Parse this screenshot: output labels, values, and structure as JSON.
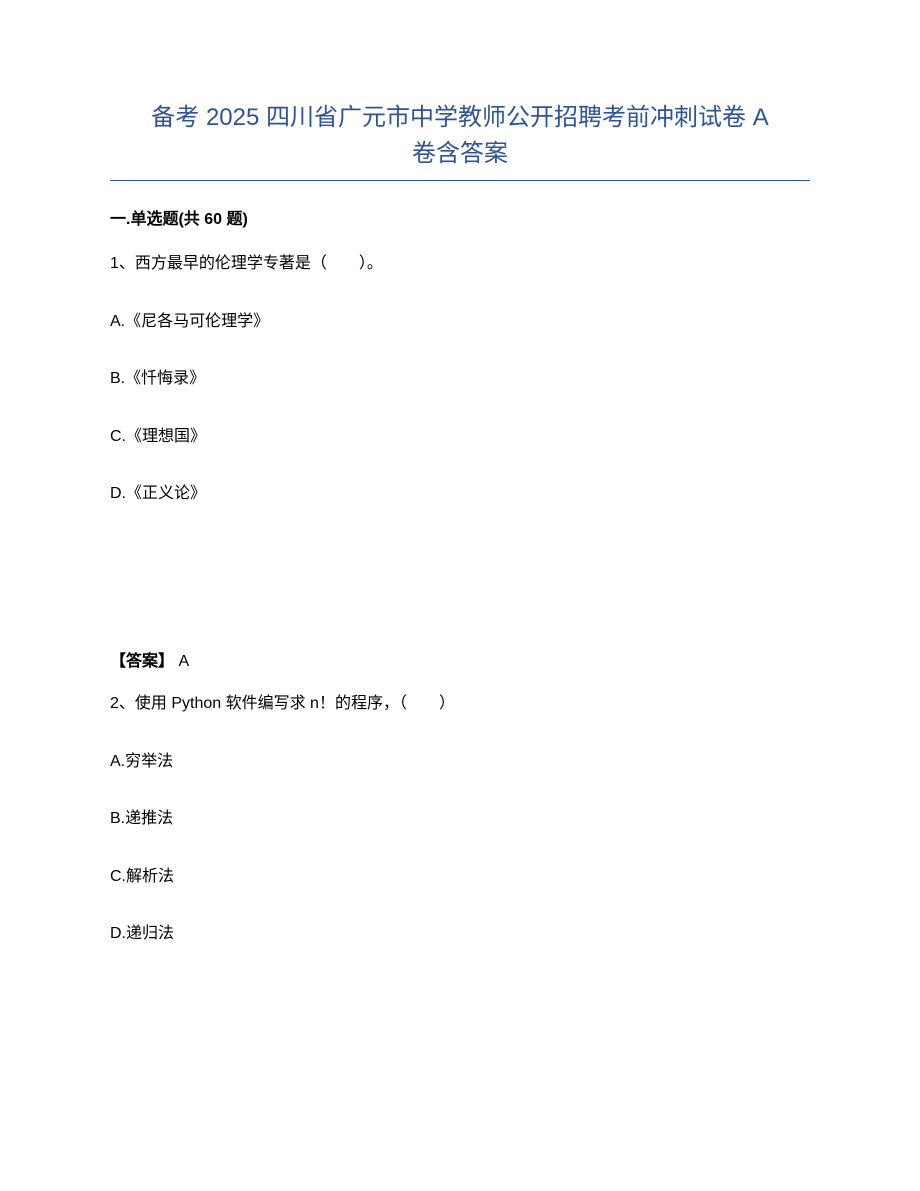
{
  "document": {
    "title_line1": "备考 2025 四川省广元市中学教师公开招聘考前冲刺试卷 A",
    "title_line2": "卷含答案",
    "section_header": "一.单选题(共 60 题)",
    "title_color": "#2e5496",
    "body_color": "#000000",
    "background_color": "#ffffff",
    "title_fontsize": 24,
    "body_fontsize": 16,
    "questions": [
      {
        "number": "1、",
        "text": "西方最早的伦理学专著是（　　）。",
        "options": {
          "A": "A.《尼各马可伦理学》",
          "B": "B.《忏悔录》",
          "C": "C.《理想国》",
          "D": "D.《正义论》"
        },
        "answer_label": "【答案】",
        "answer_value": " A"
      },
      {
        "number": "2、",
        "text": "使用 Python 软件编写求 n！的程序，（　　）",
        "options": {
          "A": "A.穷举法",
          "B": "B.递推法",
          "C": "C.解析法",
          "D": "D.递归法"
        }
      }
    ]
  }
}
